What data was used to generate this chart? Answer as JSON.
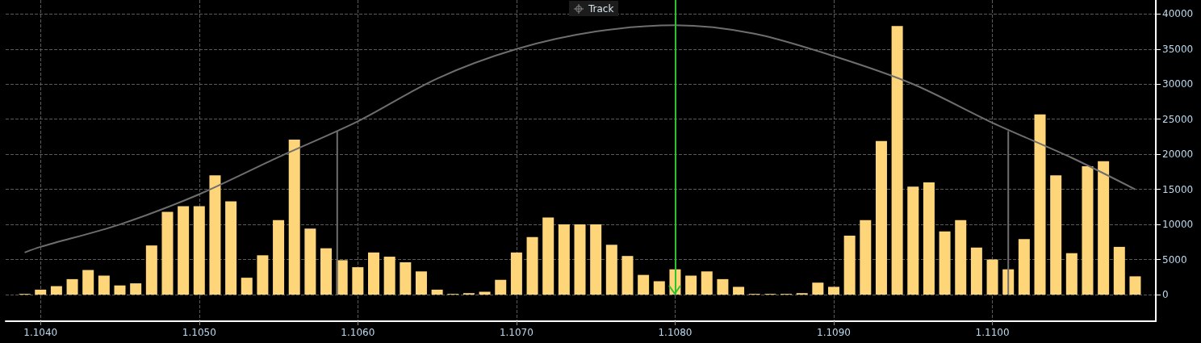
{
  "chart_data": {
    "type": "bar",
    "annotations": [
      "Track"
    ],
    "xlim": [
      1.10378,
      1.11103
    ],
    "ylim": [
      -3800,
      42000
    ],
    "xticks": [
      {
        "value": 1.104,
        "label": "1.1040"
      },
      {
        "value": 1.105,
        "label": "1.1050"
      },
      {
        "value": 1.106,
        "label": "1.1060"
      },
      {
        "value": 1.107,
        "label": "1.1070"
      },
      {
        "value": 1.108,
        "label": "1.1080"
      },
      {
        "value": 1.109,
        "label": "1.1090"
      },
      {
        "value": 1.11,
        "label": "1.1100"
      }
    ],
    "yticks": [
      0,
      5000,
      10000,
      15000,
      20000,
      25000,
      30000,
      35000,
      40000
    ],
    "grid": true,
    "marker": "none",
    "ref_lines": [
      {
        "axis": "x",
        "value": 1.108,
        "color": "#2ec12e"
      }
    ],
    "series": [
      {
        "color": "#ffd57a",
        "x": [
          1.1039,
          1.104,
          1.1041,
          1.1042,
          1.1043,
          1.1044,
          1.1045,
          1.1046,
          1.1047,
          1.1048,
          1.1049,
          1.105,
          1.1051,
          1.1052,
          1.1053,
          1.1054,
          1.1055,
          1.1056,
          1.1057,
          1.1058,
          1.1059,
          1.106,
          1.1061,
          1.1062,
          1.1063,
          1.1064,
          1.1065,
          1.1066,
          1.1067,
          1.1068,
          1.1069,
          1.107,
          1.1071,
          1.1072,
          1.1073,
          1.1074,
          1.1075,
          1.1076,
          1.1077,
          1.1078,
          1.1079,
          1.108,
          1.1081,
          1.1082,
          1.1083,
          1.1084,
          1.1085,
          1.1086,
          1.1087,
          1.1088,
          1.1089,
          1.109,
          1.1091,
          1.1092,
          1.1093,
          1.1094,
          1.1095,
          1.1096,
          1.1097,
          1.1098,
          1.1099,
          1.11,
          1.1101,
          1.1102,
          1.1103,
          1.1104,
          1.1105,
          1.1106,
          1.1107,
          1.1108,
          1.1109
        ],
        "values": [
          100,
          700,
          1200,
          2200,
          3500,
          2700,
          1300,
          1600,
          7000,
          11800,
          12600,
          12600,
          17000,
          13300,
          2400,
          5600,
          10600,
          22100,
          9400,
          6600,
          4900,
          3900,
          6000,
          5400,
          4600,
          3300,
          700,
          100,
          200,
          400,
          2100,
          6000,
          8200,
          11000,
          10000,
          10000,
          10000,
          7100,
          5500,
          2800,
          1900,
          3600,
          2700,
          3300,
          2200,
          1100,
          100,
          100,
          100,
          200,
          1700,
          1100,
          8400,
          10600,
          21900,
          38300,
          15400,
          16000,
          9000,
          10600,
          6700,
          5000,
          3600,
          7900,
          25700,
          17000,
          5900,
          18300,
          19000,
          6800,
          2600
        ]
      },
      {
        "type": "line",
        "color": "#6e6e6e",
        "x": [
          1.1039,
          1.104,
          1.1045,
          1.105,
          1.1055,
          1.106,
          1.1065,
          1.107,
          1.1075,
          1.108,
          1.1085,
          1.109,
          1.1095,
          1.11,
          1.1105,
          1.1109
        ],
        "values": [
          6000,
          6800,
          10000,
          14300,
          19600,
          24700,
          30800,
          35000,
          37500,
          38400,
          37200,
          34000,
          30000,
          24500,
          19500,
          15000
        ]
      },
      {
        "type": "line",
        "color": "#6e6e6e",
        "x": [
          1.10587,
          1.10587
        ],
        "values": [
          0,
          23300
        ]
      },
      {
        "type": "line",
        "color": "#6e6e6e",
        "x": [
          1.1101,
          1.1101
        ],
        "values": [
          0,
          23300
        ]
      }
    ]
  }
}
